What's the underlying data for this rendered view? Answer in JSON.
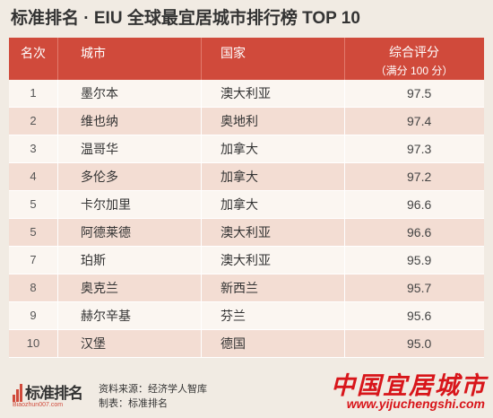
{
  "title": "标准排名 · EIU 全球最宜居城市排行榜 TOP 10",
  "header": {
    "rank": "名次",
    "city": "城市",
    "country": "国家",
    "score": "综合评分",
    "score_sub": "（满分 100 分）"
  },
  "rows": [
    {
      "rank": "1",
      "city": "墨尔本",
      "country": "澳大利亚",
      "score": "97.5"
    },
    {
      "rank": "2",
      "city": "维也纳",
      "country": "奥地利",
      "score": "97.4"
    },
    {
      "rank": "3",
      "city": "温哥华",
      "country": "加拿大",
      "score": "97.3"
    },
    {
      "rank": "4",
      "city": "多伦多",
      "country": "加拿大",
      "score": "97.2"
    },
    {
      "rank": "5",
      "city": "卡尔加里",
      "country": "加拿大",
      "score": "96.6"
    },
    {
      "rank": "5",
      "city": "阿德莱德",
      "country": "澳大利亚",
      "score": "96.6"
    },
    {
      "rank": "7",
      "city": "珀斯",
      "country": "澳大利亚",
      "score": "95.9"
    },
    {
      "rank": "8",
      "city": "奥克兰",
      "country": "新西兰",
      "score": "95.7"
    },
    {
      "rank": "9",
      "city": "赫尔辛基",
      "country": "芬兰",
      "score": "95.6"
    },
    {
      "rank": "10",
      "city": "汉堡",
      "country": "德国",
      "score": "95.0"
    }
  ],
  "footer": {
    "logo_text": "标准排名",
    "logo_url": "Biaozhun007.com",
    "source": "资料来源：经济学人智库",
    "maker": "制表：标准排名",
    "watermark_cn": "中国宜居城市",
    "watermark_url": "www.yijuchengshi.com"
  },
  "colors": {
    "accent": "#d04a3b",
    "row_odd": "#fbf6f1",
    "row_even": "#f3ddd3",
    "watermark": "#d8151a"
  }
}
